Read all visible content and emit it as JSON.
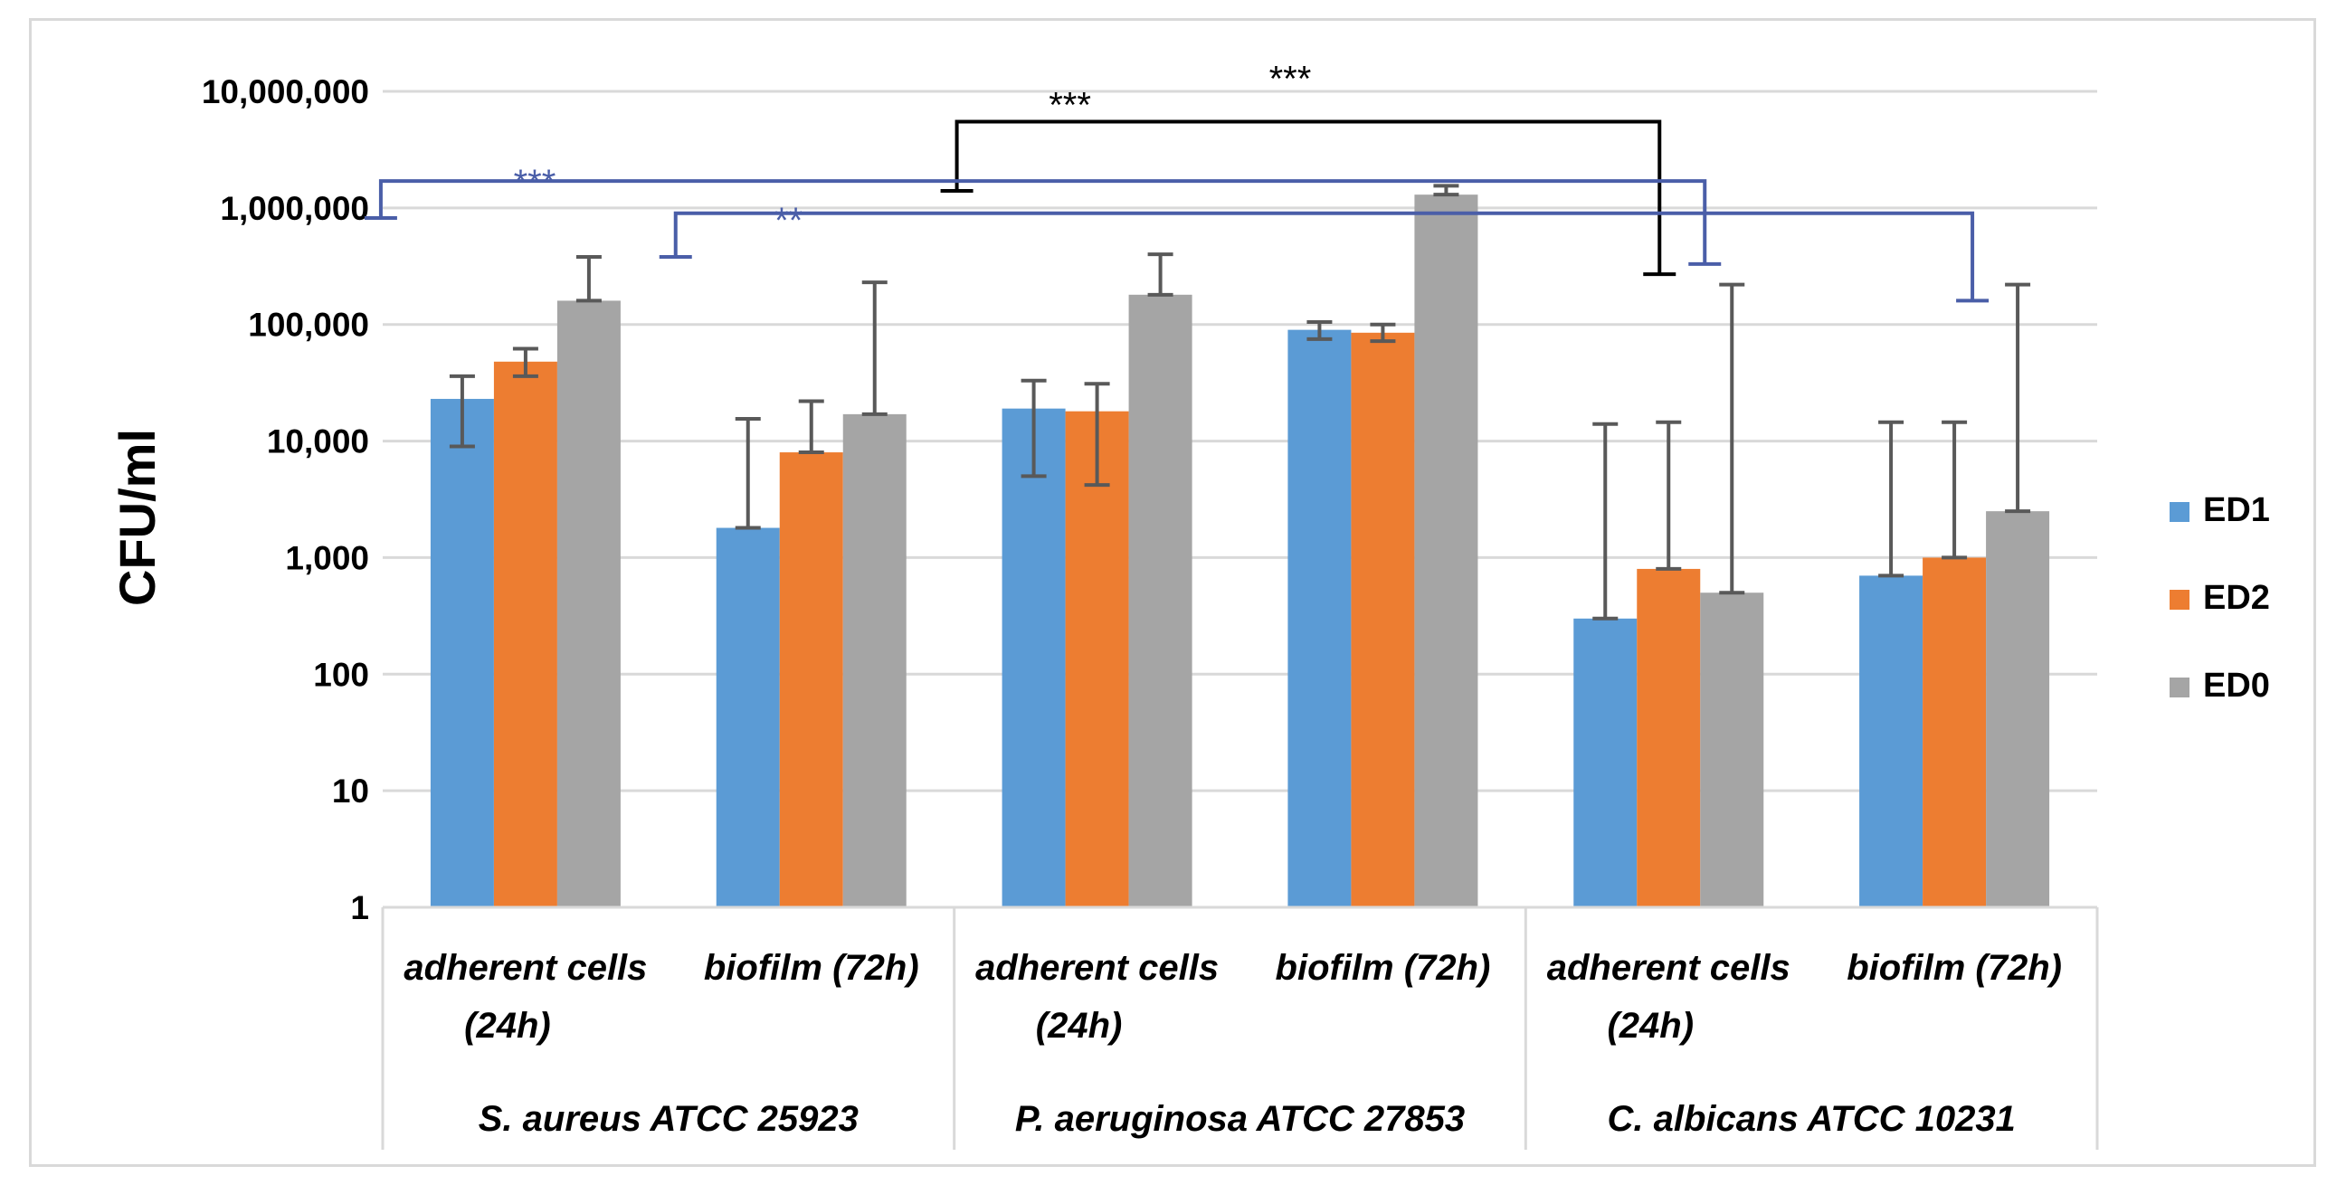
{
  "chart_data": {
    "type": "bar",
    "ylabel": "CFU/ml",
    "yscale": "log",
    "ylim": [
      1,
      10000000
    ],
    "y_ticks": [
      {
        "value": 1,
        "label": "1"
      },
      {
        "value": 10,
        "label": "10"
      },
      {
        "value": 100,
        "label": "100"
      },
      {
        "value": 1000,
        "label": "1,000"
      },
      {
        "value": 10000,
        "label": "10,000"
      },
      {
        "value": 100000,
        "label": "100,000"
      },
      {
        "value": 1000000,
        "label": "1,000,000"
      },
      {
        "value": 10000000,
        "label": "10,000,000"
      }
    ],
    "grid": true,
    "legend_position": "right",
    "categories": [
      {
        "label_lines": [
          "adherent cells",
          "(24h)"
        ],
        "group": 0
      },
      {
        "label_lines": [
          "biofilm (72h)"
        ],
        "group": 0
      },
      {
        "label_lines": [
          "adherent cells",
          "(24h)"
        ],
        "group": 1
      },
      {
        "label_lines": [
          "biofilm (72h)"
        ],
        "group": 1
      },
      {
        "label_lines": [
          "adherent cells",
          "(24h)"
        ],
        "group": 2
      },
      {
        "label_lines": [
          "biofilm (72h)"
        ],
        "group": 2
      }
    ],
    "groups": [
      "S. aureus ATCC 25923",
      "P. aeruginosa ATCC 27853",
      "C. albicans ATCC 10231"
    ],
    "series": [
      {
        "name": "ED1",
        "color": "#5b9bd5",
        "values": [
          23000,
          1800,
          19000,
          90000,
          300,
          700
        ],
        "err_low": [
          9000,
          1800,
          5000,
          75000,
          300,
          700
        ],
        "err_high": [
          36000,
          15500,
          33000,
          105000,
          14000,
          14500
        ]
      },
      {
        "name": "ED2",
        "color": "#ed7d31",
        "values": [
          48000,
          8000,
          18000,
          85000,
          800,
          1000
        ],
        "err_low": [
          36000,
          8000,
          4200,
          72000,
          800,
          1000
        ],
        "err_high": [
          62000,
          22000,
          31000,
          100000,
          14500,
          14500
        ]
      },
      {
        "name": "ED0",
        "color": "#a5a5a5",
        "values": [
          160000,
          17000,
          180000,
          1300000,
          500,
          2500
        ],
        "err_low": [
          160000,
          17000,
          180000,
          1300000,
          500,
          2500
        ],
        "err_high": [
          380000,
          230000,
          400000,
          1550000,
          220000,
          220000
        ]
      }
    ],
    "annotations": [
      {
        "text": "***",
        "color": "#000000",
        "from_cat": 2,
        "to_cat": 4,
        "bracket_value": 5500000,
        "left_end": 1400000,
        "right_end": 270000,
        "label_value": 15000000
      },
      {
        "text": "***",
        "color": "#4a5ea8",
        "from_cat": 0,
        "to_cat": 4,
        "bracket_value": 1700000,
        "left_end": 820000,
        "right_end": 330000,
        "label_value": 1800000
      },
      {
        "text": "**",
        "color": "#4a5ea8",
        "from_cat": 1,
        "to_cat": 5,
        "bracket_value": 900000,
        "left_end": 380000,
        "right_end": 160000,
        "label_value": 850000
      }
    ]
  }
}
